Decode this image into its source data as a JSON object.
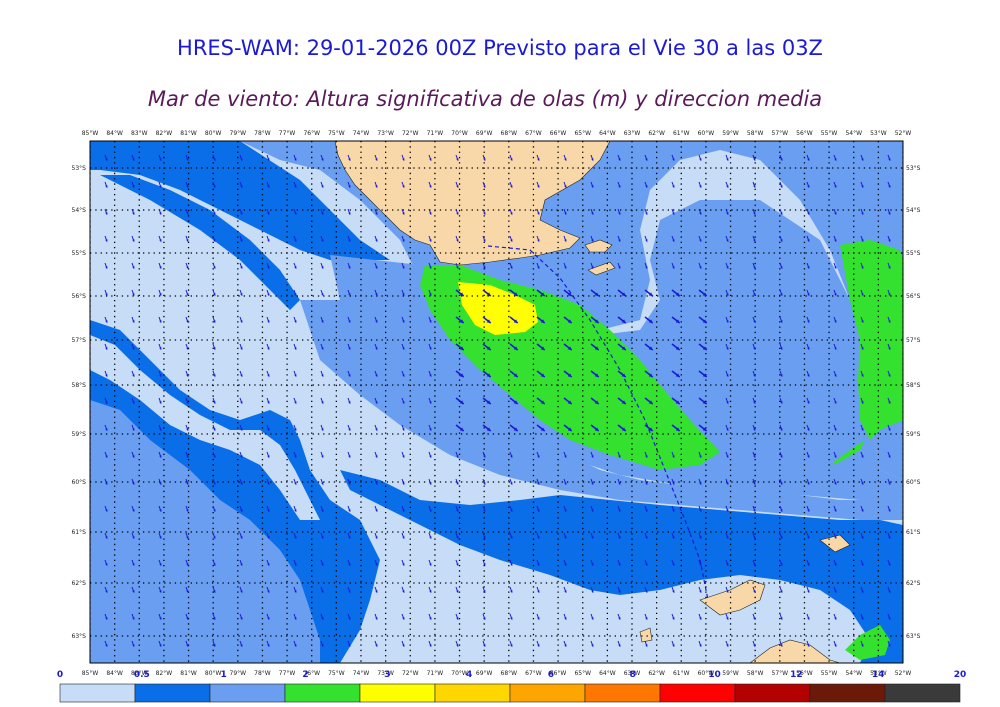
{
  "header": {
    "title": "HRES-WAM: 29-01-2026 00Z Previsto para el Vie 30 a las 03Z",
    "subtitle": "Mar de viento: Altura significativa de olas (m) y direccion media"
  },
  "map": {
    "lon_labels": [
      "85°W",
      "84°W",
      "83°W",
      "82°W",
      "81°W",
      "80°W",
      "79°W",
      "78°W",
      "77°W",
      "76°W",
      "75°W",
      "74°W",
      "73°W",
      "72°W",
      "71°W",
      "70°W",
      "69°W",
      "68°W",
      "67°W",
      "66°W",
      "65°W",
      "64°W",
      "63°W",
      "62°W",
      "61°W",
      "60°W",
      "59°W",
      "58°W",
      "57°W",
      "56°W",
      "55°W",
      "54°W",
      "53°W",
      "52°W"
    ],
    "lat_labels": [
      "53°S",
      "54°S",
      "55°S",
      "56°S",
      "57°S",
      "58°S",
      "59°S",
      "60°S",
      "61°S",
      "62°S",
      "63°S"
    ],
    "layer": "significant wind-sea wave height with mean direction arrows",
    "land_color": "#f8d8a8"
  },
  "colorbar": {
    "labels": [
      "0",
      "0.5",
      "1",
      "2",
      "3",
      "4",
      "6",
      "8",
      "10",
      "12",
      "14",
      "20"
    ],
    "colors": [
      "#c6dcf7",
      "#0a6ee8",
      "#6a9ef0",
      "#33e12e",
      "#ffff00",
      "#ffd700",
      "#ffa500",
      "#ff7700",
      "#ff0000",
      "#b30000",
      "#6b1a0a",
      "#3a3a3a"
    ]
  }
}
